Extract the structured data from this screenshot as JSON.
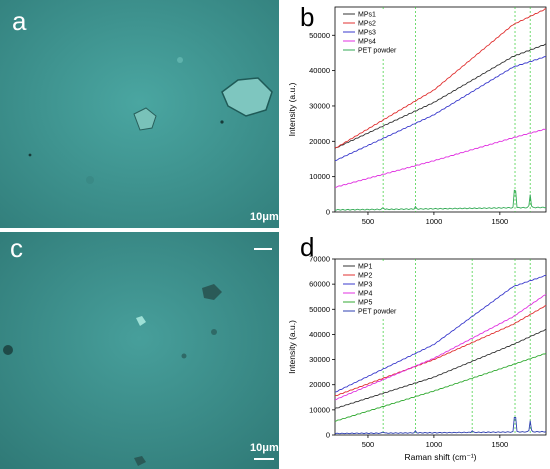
{
  "panels": {
    "a": {
      "letter": "a",
      "scale_label": "10μm",
      "tint": "#3f9c98"
    },
    "c": {
      "letter": "c",
      "scale_label": "10μm",
      "tint": "#3f9c98"
    },
    "b": {
      "letter": "b"
    },
    "d": {
      "letter": "d"
    }
  },
  "chart_data": [
    {
      "type": "line",
      "panel": "b",
      "xlabel": "",
      "ylabel": "Intensity (a.u.)",
      "xlim": [
        250,
        1850
      ],
      "ylim": [
        0,
        58000
      ],
      "x_ticks": [
        500,
        1000,
        1500
      ],
      "x_tick_labels": [
        "500",
        "1000",
        "1500"
      ],
      "y_ticks": [
        0,
        10000,
        20000,
        30000,
        40000,
        50000
      ],
      "y_tick_labels": [
        "0",
        "10000",
        "20000",
        "30000",
        "40000",
        "50000"
      ],
      "vlines": [
        615,
        860,
        1615,
        1730
      ],
      "vline_color": "#33cc33",
      "legend_position": "top-left",
      "series": [
        {
          "name": "MPs1",
          "color": "#333333",
          "x": [
            250,
            1000,
            1600,
            1850
          ],
          "y": [
            18000,
            31000,
            44000,
            47500
          ]
        },
        {
          "name": "MPs2",
          "color": "#e03030",
          "x": [
            250,
            1000,
            1600,
            1850
          ],
          "y": [
            18000,
            34500,
            53000,
            57500
          ]
        },
        {
          "name": "MPs3",
          "color": "#3a3acc",
          "x": [
            250,
            1000,
            1600,
            1850
          ],
          "y": [
            14500,
            27500,
            41000,
            44000
          ]
        },
        {
          "name": "MPs4",
          "color": "#e030e0",
          "x": [
            250,
            1000,
            1600,
            1850
          ],
          "y": [
            7000,
            14500,
            21000,
            23500
          ]
        },
        {
          "name": "PET powder",
          "color": "#33aa55",
          "x": [
            250,
            1000,
            1600,
            1850
          ],
          "y": [
            600,
            900,
            1200,
            1300
          ]
        }
      ]
    },
    {
      "type": "line",
      "panel": "d",
      "xlabel": "Raman shift (cm⁻¹)",
      "ylabel": "Intensity (a.u.)",
      "xlim": [
        250,
        1850
      ],
      "ylim": [
        0,
        70000
      ],
      "x_ticks": [
        500,
        1000,
        1500
      ],
      "x_tick_labels": [
        "500",
        "1000",
        "1500"
      ],
      "y_ticks": [
        0,
        10000,
        20000,
        30000,
        40000,
        50000,
        60000,
        70000
      ],
      "y_tick_labels": [
        "0",
        "10000",
        "20000",
        "30000",
        "40000",
        "50000",
        "60000",
        "70000"
      ],
      "vlines": [
        615,
        860,
        1290,
        1615,
        1730
      ],
      "vline_color": "#33cc33",
      "legend_position": "top-left",
      "series": [
        {
          "name": "MP1",
          "color": "#333333",
          "x": [
            250,
            1000,
            1600,
            1850
          ],
          "y": [
            10500,
            23000,
            36000,
            42000
          ]
        },
        {
          "name": "MP2",
          "color": "#e03030",
          "x": [
            250,
            1000,
            1600,
            1850
          ],
          "y": [
            15500,
            30000,
            44000,
            51500
          ]
        },
        {
          "name": "MP3",
          "color": "#3a3acc",
          "x": [
            250,
            1000,
            1600,
            1850
          ],
          "y": [
            17000,
            36000,
            59000,
            63500
          ]
        },
        {
          "name": "MP4",
          "color": "#e030e0",
          "x": [
            250,
            1000,
            1600,
            1850
          ],
          "y": [
            14000,
            30500,
            47000,
            56000
          ]
        },
        {
          "name": "MP5",
          "color": "#33aa33",
          "x": [
            250,
            1000,
            1600,
            1850
          ],
          "y": [
            5500,
            17500,
            28000,
            32500
          ]
        },
        {
          "name": "PET powder",
          "color": "#2e3fb0",
          "x": [
            250,
            1000,
            1600,
            1850
          ],
          "y": [
            600,
            900,
            1200,
            1300
          ]
        }
      ]
    }
  ]
}
